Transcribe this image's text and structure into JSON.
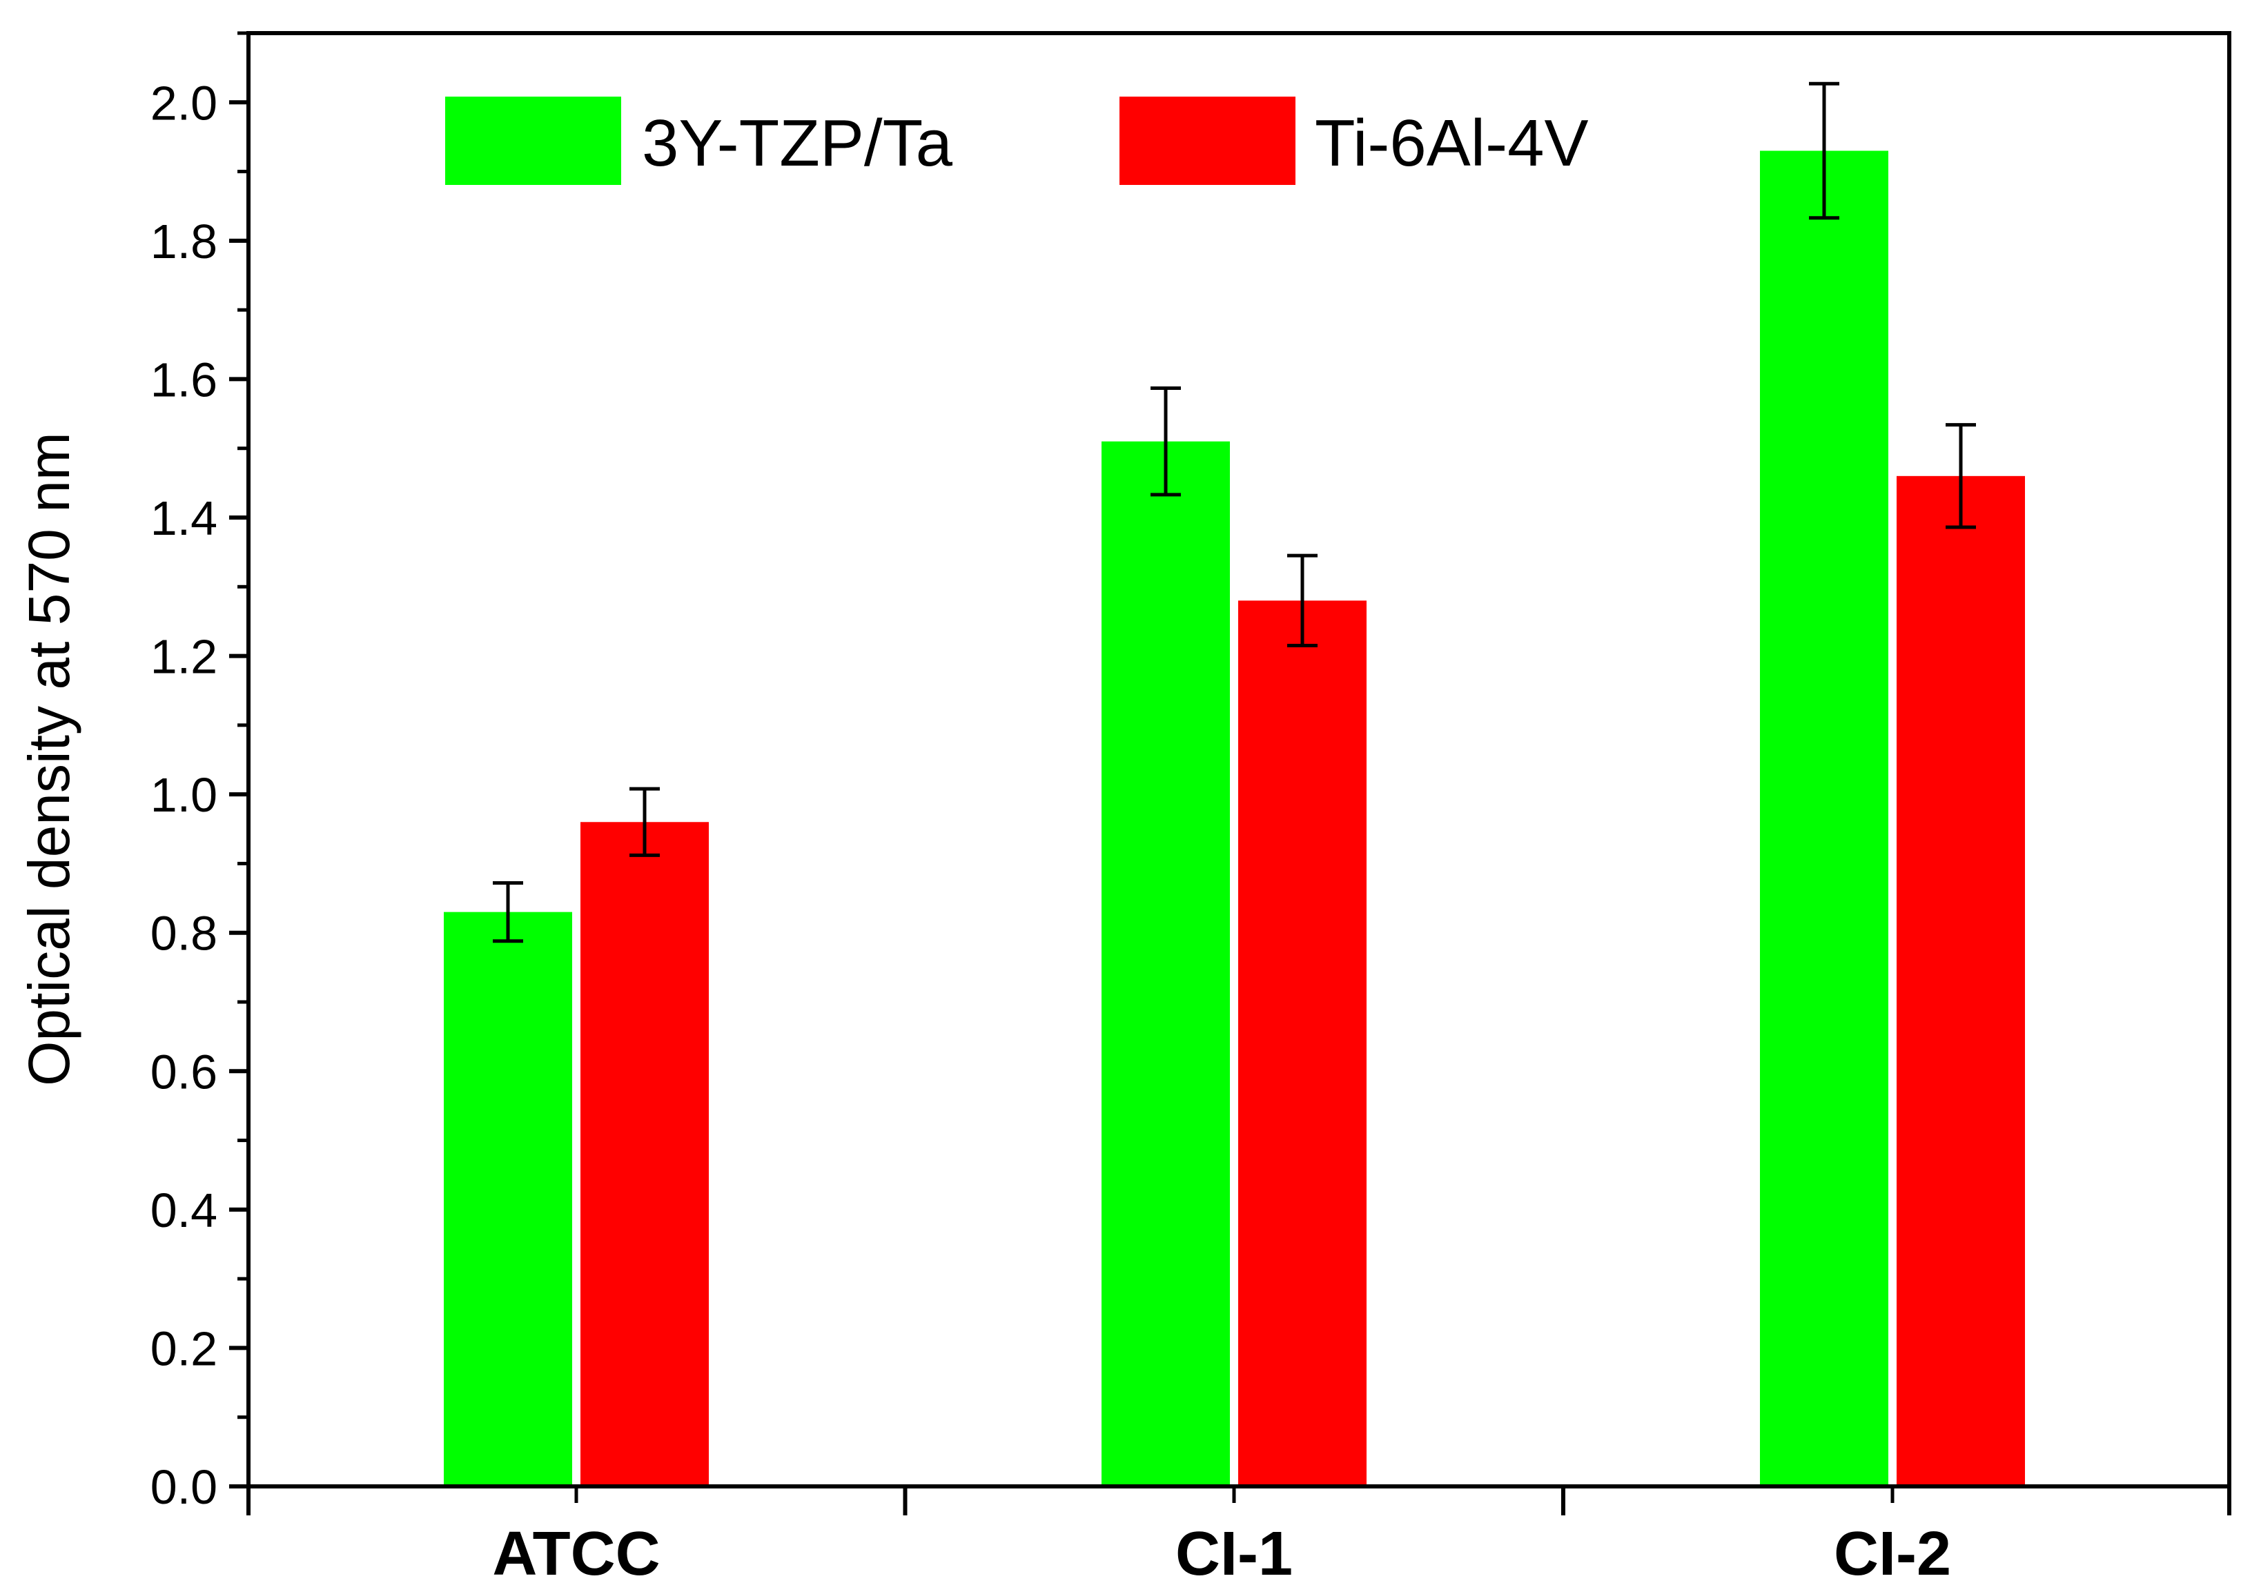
{
  "chart_data": {
    "type": "bar",
    "categories": [
      "ATCC",
      "CI-1",
      "CI-2"
    ],
    "series": [
      {
        "name": "3Y-TZP/Ta",
        "color": "#00ff00",
        "values": [
          0.83,
          1.51,
          1.93
        ],
        "errors": [
          0.042,
          0.077,
          0.097
        ]
      },
      {
        "name": "Ti-6Al-4V",
        "color": "#ff0000",
        "values": [
          0.96,
          1.28,
          1.46
        ],
        "errors": [
          0.048,
          0.065,
          0.074
        ]
      }
    ],
    "title": "",
    "xlabel": "",
    "ylabel": "Optical density at 570 nm",
    "ylim": [
      0,
      2.1
    ],
    "yticks": [
      "0.0",
      "0.2",
      "0.4",
      "0.6",
      "0.8",
      "1.0",
      "1.2",
      "1.4",
      "1.6",
      "1.8",
      "2.0"
    ],
    "grid": false,
    "legend": "top-left"
  }
}
